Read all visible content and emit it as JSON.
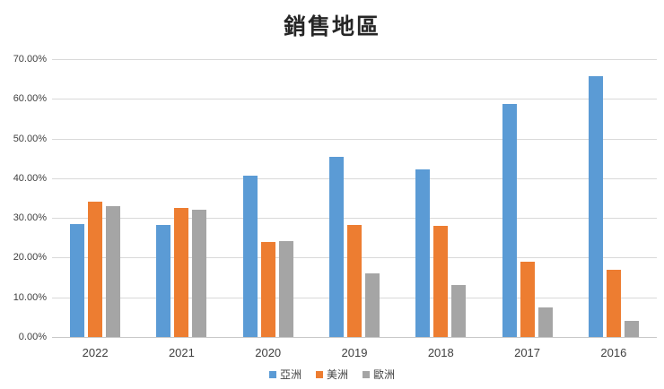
{
  "chart_data": {
    "type": "bar",
    "title": "銷售地區",
    "categories": [
      "2022",
      "2021",
      "2020",
      "2019",
      "2018",
      "2017",
      "2016"
    ],
    "series": [
      {
        "key": "asia",
        "name": "亞洲",
        "color": "#5B9BD5",
        "values": [
          28.5,
          28.2,
          40.7,
          45.4,
          42.3,
          58.8,
          65.7
        ]
      },
      {
        "key": "americas",
        "name": "美洲",
        "color": "#ED7D31",
        "values": [
          34.0,
          32.6,
          24.0,
          28.2,
          28.0,
          19.0,
          17.0
        ]
      },
      {
        "key": "europe",
        "name": "歐洲",
        "color": "#A5A5A5",
        "values": [
          33.0,
          32.0,
          24.2,
          16.0,
          13.0,
          7.5,
          4.0
        ]
      }
    ],
    "xlabel": "",
    "ylabel": "",
    "ylim": [
      0,
      70
    ],
    "y_tick_step": 10,
    "y_tick_labels": [
      "0.00%",
      "10.00%",
      "20.00%",
      "30.00%",
      "40.00%",
      "50.00%",
      "60.00%",
      "70.00%"
    ],
    "grid": true,
    "legend_position": "bottom",
    "colors": {
      "background": "#FFFFFF",
      "gridline": "#D9D9D9",
      "axis_text": "#404040",
      "title_text": "#262626"
    }
  }
}
